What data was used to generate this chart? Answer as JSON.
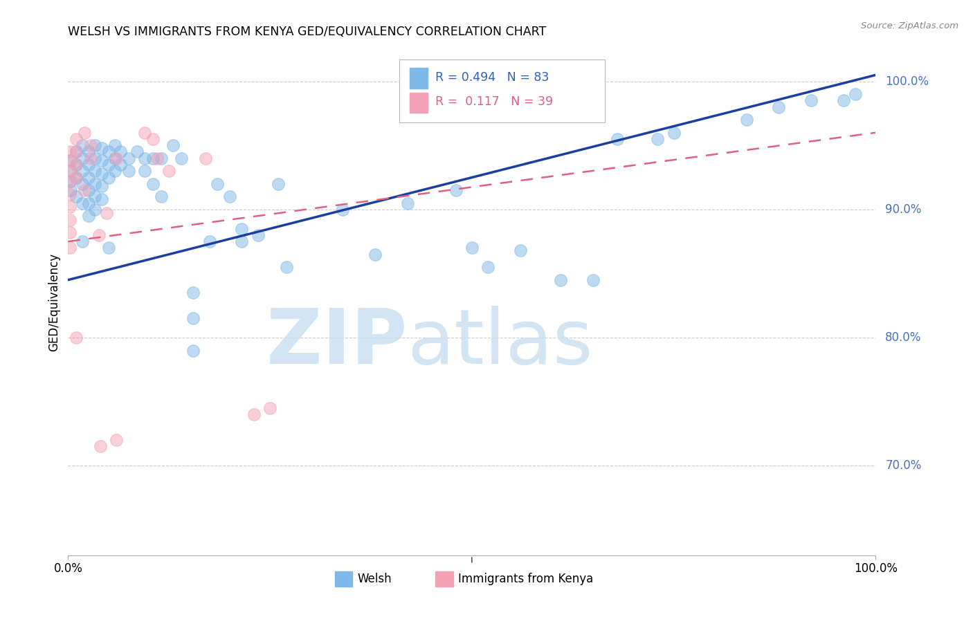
{
  "title": "WELSH VS IMMIGRANTS FROM KENYA GED/EQUIVALENCY CORRELATION CHART",
  "source": "Source: ZipAtlas.com",
  "ylabel": "GED/Equivalency",
  "ytick_labels": [
    "100.0%",
    "90.0%",
    "80.0%",
    "70.0%"
  ],
  "ytick_values": [
    1.0,
    0.9,
    0.8,
    0.7
  ],
  "xlim": [
    0.0,
    1.0
  ],
  "ylim": [
    0.63,
    1.025
  ],
  "legend_welsh": "Welsh",
  "legend_kenya": "Immigrants from Kenya",
  "R_welsh": 0.494,
  "N_welsh": 83,
  "R_kenya": 0.117,
  "N_kenya": 39,
  "blue_color": "#7eb8e8",
  "pink_color": "#f4a0b5",
  "blue_line_color": "#1a3fa0",
  "pink_line_color": "#e06080",
  "blue_scatter": [
    [
      0.003,
      0.938
    ],
    [
      0.003,
      0.93
    ],
    [
      0.003,
      0.922
    ],
    [
      0.003,
      0.915
    ],
    [
      0.01,
      0.945
    ],
    [
      0.01,
      0.935
    ],
    [
      0.01,
      0.925
    ],
    [
      0.01,
      0.91
    ],
    [
      0.018,
      0.95
    ],
    [
      0.018,
      0.94
    ],
    [
      0.018,
      0.93
    ],
    [
      0.018,
      0.92
    ],
    [
      0.018,
      0.905
    ],
    [
      0.018,
      0.875
    ],
    [
      0.025,
      0.945
    ],
    [
      0.025,
      0.935
    ],
    [
      0.025,
      0.925
    ],
    [
      0.025,
      0.915
    ],
    [
      0.025,
      0.905
    ],
    [
      0.025,
      0.895
    ],
    [
      0.033,
      0.95
    ],
    [
      0.033,
      0.94
    ],
    [
      0.033,
      0.93
    ],
    [
      0.033,
      0.92
    ],
    [
      0.033,
      0.91
    ],
    [
      0.033,
      0.9
    ],
    [
      0.042,
      0.948
    ],
    [
      0.042,
      0.938
    ],
    [
      0.042,
      0.928
    ],
    [
      0.042,
      0.918
    ],
    [
      0.042,
      0.908
    ],
    [
      0.05,
      0.945
    ],
    [
      0.05,
      0.935
    ],
    [
      0.05,
      0.925
    ],
    [
      0.05,
      0.87
    ],
    [
      0.058,
      0.95
    ],
    [
      0.058,
      0.94
    ],
    [
      0.058,
      0.93
    ],
    [
      0.065,
      0.945
    ],
    [
      0.065,
      0.935
    ],
    [
      0.075,
      0.94
    ],
    [
      0.075,
      0.93
    ],
    [
      0.085,
      0.945
    ],
    [
      0.095,
      0.94
    ],
    [
      0.095,
      0.93
    ],
    [
      0.105,
      0.94
    ],
    [
      0.105,
      0.92
    ],
    [
      0.115,
      0.94
    ],
    [
      0.115,
      0.91
    ],
    [
      0.13,
      0.95
    ],
    [
      0.14,
      0.94
    ],
    [
      0.155,
      0.835
    ],
    [
      0.155,
      0.815
    ],
    [
      0.155,
      0.79
    ],
    [
      0.175,
      0.875
    ],
    [
      0.185,
      0.92
    ],
    [
      0.2,
      0.91
    ],
    [
      0.215,
      0.885
    ],
    [
      0.215,
      0.875
    ],
    [
      0.235,
      0.88
    ],
    [
      0.26,
      0.92
    ],
    [
      0.27,
      0.855
    ],
    [
      0.34,
      0.9
    ],
    [
      0.38,
      0.865
    ],
    [
      0.42,
      0.905
    ],
    [
      0.48,
      0.915
    ],
    [
      0.5,
      0.87
    ],
    [
      0.52,
      0.855
    ],
    [
      0.56,
      0.868
    ],
    [
      0.61,
      0.845
    ],
    [
      0.65,
      0.845
    ],
    [
      0.68,
      0.955
    ],
    [
      0.73,
      0.955
    ],
    [
      0.75,
      0.96
    ],
    [
      0.84,
      0.97
    ],
    [
      0.88,
      0.98
    ],
    [
      0.92,
      0.985
    ],
    [
      0.96,
      0.985
    ],
    [
      0.975,
      0.99
    ]
  ],
  "pink_scatter": [
    [
      0.002,
      0.945
    ],
    [
      0.002,
      0.938
    ],
    [
      0.002,
      0.93
    ],
    [
      0.002,
      0.922
    ],
    [
      0.002,
      0.912
    ],
    [
      0.002,
      0.902
    ],
    [
      0.002,
      0.892
    ],
    [
      0.002,
      0.882
    ],
    [
      0.002,
      0.87
    ],
    [
      0.01,
      0.955
    ],
    [
      0.01,
      0.945
    ],
    [
      0.01,
      0.935
    ],
    [
      0.01,
      0.925
    ],
    [
      0.01,
      0.8
    ],
    [
      0.02,
      0.96
    ],
    [
      0.02,
      0.915
    ],
    [
      0.028,
      0.95
    ],
    [
      0.028,
      0.94
    ],
    [
      0.038,
      0.88
    ],
    [
      0.048,
      0.897
    ],
    [
      0.06,
      0.94
    ],
    [
      0.095,
      0.96
    ],
    [
      0.105,
      0.955
    ],
    [
      0.11,
      0.94
    ],
    [
      0.125,
      0.93
    ],
    [
      0.04,
      0.715
    ],
    [
      0.06,
      0.72
    ],
    [
      0.17,
      0.94
    ],
    [
      0.23,
      0.74
    ],
    [
      0.25,
      0.745
    ]
  ],
  "blue_line": [
    [
      0.0,
      0.845
    ],
    [
      1.0,
      1.005
    ]
  ],
  "pink_line": [
    [
      0.0,
      0.875
    ],
    [
      1.0,
      0.96
    ]
  ]
}
